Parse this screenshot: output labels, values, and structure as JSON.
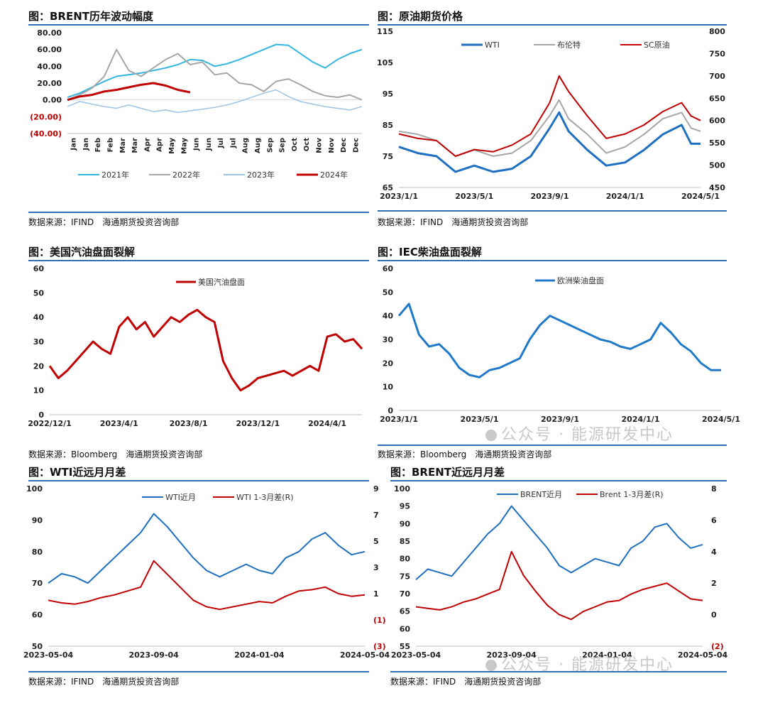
{
  "watermark": "公众号 · 能源研发中心",
  "panels": [
    {
      "title": "图：BRENT历年波动幅度",
      "source": "数据来源：IFIND　海通期货投资咨询部",
      "chart_data": {
        "type": "line",
        "ylim": [
          -40,
          80
        ],
        "yticks": [
          "80.00",
          "60.00",
          "40.00",
          "20.00",
          "0.00",
          "(20.00)",
          "(40.00)"
        ],
        "ytick_values": [
          80,
          60,
          40,
          20,
          0,
          -20,
          -40
        ],
        "xticks": [
          "Jan",
          "Jan",
          "Feb",
          "Feb",
          "Mar",
          "Mar",
          "Apr",
          "Apr",
          "May",
          "May",
          "Jun",
          "Jun",
          "Jul",
          "Jul",
          "Aug",
          "Aug",
          "Sep",
          "Sep",
          "Oct",
          "Oct",
          "Nov",
          "Nov",
          "Dec",
          "Dec"
        ],
        "series": [
          {
            "name": "2021年",
            "color": "#33b5e0",
            "width": 2,
            "x": [
              0,
              0.5,
              1,
              1.5,
              2,
              2.5,
              3,
              3.5,
              4,
              4.5,
              5,
              5.5,
              6,
              6.5,
              7,
              7.5,
              8,
              8.5,
              9,
              9.5,
              10,
              10.5,
              11,
              11.5,
              12
            ],
            "values": [
              3,
              8,
              15,
              22,
              28,
              30,
              32,
              35,
              38,
              42,
              48,
              47,
              40,
              43,
              48,
              54,
              60,
              66,
              65,
              55,
              45,
              38,
              48,
              55,
              60
            ]
          },
          {
            "name": "2022年",
            "color": "#a6a6a6",
            "width": 2,
            "x": [
              0,
              0.5,
              1,
              1.5,
              2,
              2.5,
              3,
              3.5,
              4,
              4.5,
              5,
              5.5,
              6,
              6.5,
              7,
              7.5,
              8,
              8.5,
              9,
              9.5,
              10,
              10.5,
              11,
              11.5,
              12
            ],
            "values": [
              0,
              6,
              14,
              28,
              60,
              35,
              28,
              38,
              48,
              55,
              42,
              45,
              30,
              32,
              20,
              18,
              10,
              22,
              25,
              18,
              10,
              5,
              3,
              6,
              0
            ]
          },
          {
            "name": "2023年",
            "color": "#9dc3e6",
            "width": 1.5,
            "x": [
              0,
              0.5,
              1,
              1.5,
              2,
              2.5,
              3,
              3.5,
              4,
              4.5,
              5,
              5.5,
              6,
              6.5,
              7,
              7.5,
              8,
              8.5,
              9,
              9.5,
              10,
              10.5,
              11,
              11.5,
              12
            ],
            "values": [
              -8,
              -2,
              -5,
              -8,
              -10,
              -6,
              -10,
              -14,
              -12,
              -15,
              -13,
              -11,
              -9,
              -6,
              -2,
              3,
              8,
              12,
              4,
              -2,
              -5,
              -8,
              -10,
              -12,
              -8
            ]
          },
          {
            "name": "2024年",
            "color": "#c00000",
            "width": 3,
            "x": [
              0,
              0.5,
              1,
              1.5,
              2,
              2.5,
              3,
              3.5,
              4,
              4.5,
              5
            ],
            "values": [
              0,
              4,
              6,
              10,
              12,
              15,
              18,
              20,
              17,
              12,
              9
            ]
          }
        ]
      }
    },
    {
      "title": "图：原油期货价格",
      "source": "数据来源：IFIND　海通期货投资咨询部",
      "chart_data": {
        "type": "line",
        "ylim": [
          65,
          115
        ],
        "y2lim": [
          450,
          800
        ],
        "yticks": [
          "115",
          "105",
          "95",
          "85",
          "75",
          "65"
        ],
        "ytick_values": [
          115,
          105,
          95,
          85,
          75,
          65
        ],
        "y2ticks": [
          "800",
          "750",
          "700",
          "650",
          "600",
          "550",
          "500",
          "450"
        ],
        "y2tick_values": [
          800,
          750,
          700,
          650,
          600,
          550,
          500,
          450
        ],
        "xticks": [
          "2023/1/1",
          "2023/5/1",
          "2023/9/1",
          "2024/1/1",
          "2024/5/1"
        ],
        "xtick_pos": [
          0,
          4,
          8,
          12,
          16
        ],
        "series": [
          {
            "name": "WTI",
            "color": "#1f6fc0",
            "width": 3,
            "axis": "left",
            "x": [
              0,
              1,
              2,
              3,
              4,
              5,
              6,
              7,
              8,
              8.5,
              9,
              10,
              11,
              12,
              13,
              14,
              15,
              15.5,
              16
            ],
            "values": [
              78,
              76,
              75,
              70,
              72,
              70,
              71,
              75,
              84,
              89,
              83,
              77,
              72,
              73,
              77,
              82,
              85,
              79,
              79
            ]
          },
          {
            "name": "布伦特",
            "color": "#a6a6a6",
            "width": 2,
            "axis": "left",
            "x": [
              0,
              1,
              2,
              3,
              4,
              5,
              6,
              7,
              8,
              8.5,
              9,
              10,
              11,
              12,
              13,
              14,
              15,
              15.5,
              16
            ],
            "values": [
              83,
              82,
              80,
              75,
              77,
              75,
              76,
              80,
              88,
              93,
              87,
              82,
              76,
              78,
              82,
              87,
              89,
              84,
              83
            ]
          },
          {
            "name": "SC原油",
            "color": "#c00000",
            "width": 2,
            "axis": "right",
            "x": [
              0,
              1,
              2,
              3,
              4,
              5,
              6,
              7,
              8,
              8.5,
              9,
              10,
              11,
              12,
              13,
              14,
              15,
              15.5,
              16
            ],
            "values": [
              570,
              560,
              555,
              520,
              535,
              530,
              545,
              570,
              640,
              700,
              665,
              610,
              560,
              570,
              590,
              620,
              640,
              610,
              600
            ]
          }
        ]
      }
    },
    {
      "title": "图：美国汽油盘面裂解",
      "source": "数据来源：Bloomberg　海通期货投资咨询部",
      "chart_data": {
        "type": "line",
        "ylim": [
          0,
          60
        ],
        "yticks": [
          "60",
          "50",
          "40",
          "30",
          "20",
          "10",
          "0"
        ],
        "ytick_values": [
          60,
          50,
          40,
          30,
          20,
          10,
          0
        ],
        "xticks": [
          "2022/12/1",
          "2023/4/1",
          "2023/8/1",
          "2023/12/1",
          "2024/4/1"
        ],
        "xtick_pos": [
          0,
          4,
          8,
          12,
          16
        ],
        "series": [
          {
            "name": "美国汽油盘面",
            "color": "#c00000",
            "width": 3,
            "x": [
              0,
              0.5,
              1,
              1.5,
              2,
              2.5,
              3,
              3.5,
              4,
              4.5,
              5,
              5.5,
              6,
              6.5,
              7,
              7.5,
              8,
              8.5,
              9,
              9.5,
              10,
              10.5,
              11,
              11.5,
              12,
              12.5,
              13,
              13.5,
              14,
              14.5,
              15,
              15.5,
              16,
              16.5,
              17,
              17.5,
              18
            ],
            "values": [
              20,
              15,
              18,
              22,
              26,
              30,
              27,
              25,
              36,
              40,
              35,
              38,
              32,
              36,
              40,
              38,
              41,
              43,
              40,
              38,
              22,
              15,
              10,
              12,
              15,
              16,
              17,
              18,
              16,
              18,
              20,
              18,
              32,
              33,
              30,
              31,
              27
            ]
          }
        ]
      }
    },
    {
      "title": "图：IEC柴油盘面裂解",
      "source": "数据来源：Bloomberg　海通期货投资咨询部",
      "chart_data": {
        "type": "line",
        "ylim": [
          0,
          60
        ],
        "yticks": [
          "60",
          "50",
          "40",
          "30",
          "20",
          "10",
          "0"
        ],
        "ytick_values": [
          60,
          50,
          40,
          30,
          20,
          10,
          0
        ],
        "xticks": [
          "2023/1/1",
          "2023/5/1",
          "2023/9/1",
          "2024/1/1",
          "2024/5/1"
        ],
        "xtick_pos": [
          0,
          4,
          8,
          12,
          16
        ],
        "series": [
          {
            "name": "欧洲柴油盘面",
            "color": "#1f78c8",
            "width": 3,
            "x": [
              0,
              0.5,
              1,
              1.5,
              2,
              2.5,
              3,
              3.5,
              4,
              4.5,
              5,
              5.5,
              6,
              6.5,
              7,
              7.5,
              8,
              8.5,
              9,
              9.5,
              10,
              10.5,
              11,
              11.5,
              12,
              12.5,
              13,
              13.5,
              14,
              14.5,
              15,
              15.5,
              16
            ],
            "values": [
              40,
              45,
              32,
              27,
              28,
              24,
              18,
              15,
              14,
              17,
              18,
              20,
              22,
              30,
              36,
              40,
              38,
              36,
              34,
              32,
              30,
              29,
              27,
              26,
              28,
              30,
              37,
              33,
              28,
              25,
              20,
              17,
              17
            ]
          }
        ]
      }
    },
    {
      "title": "图：WTI近远月月差",
      "source": "数据来源：IFIND　海通期货投资咨询部",
      "chart_data": {
        "type": "line",
        "ylim": [
          50,
          100
        ],
        "y2lim": [
          -3,
          9
        ],
        "yticks": [
          "100",
          "90",
          "80",
          "70",
          "60",
          "50"
        ],
        "ytick_values": [
          100,
          90,
          80,
          70,
          60,
          50
        ],
        "y2ticks": [
          "9",
          "7",
          "5",
          "3",
          "1",
          "(1)",
          "(3)"
        ],
        "y2tick_values": [
          9,
          7,
          5,
          3,
          1,
          -1,
          -3
        ],
        "xticks": [
          "2023-05-04",
          "2023-09-04",
          "2024-01-04",
          "2024-05-04"
        ],
        "xtick_pos": [
          0,
          4,
          8,
          12
        ],
        "series": [
          {
            "name": "WTI近月",
            "color": "#1f6fc0",
            "width": 2,
            "axis": "left",
            "x": [
              0,
              0.5,
              1,
              1.5,
              2,
              2.5,
              3,
              3.5,
              4,
              4.5,
              5,
              5.5,
              6,
              6.5,
              7,
              7.5,
              8,
              8.5,
              9,
              9.5,
              10,
              10.5,
              11,
              11.5,
              12
            ],
            "values": [
              70,
              73,
              72,
              70,
              74,
              78,
              82,
              86,
              92,
              88,
              83,
              78,
              74,
              72,
              74,
              76,
              74,
              73,
              78,
              80,
              84,
              86,
              82,
              79,
              80
            ]
          },
          {
            "name": "WTI 1-3月差(R)",
            "color": "#c00000",
            "width": 2,
            "axis": "right",
            "x": [
              0,
              0.5,
              1,
              1.5,
              2,
              2.5,
              3,
              3.5,
              4,
              4.5,
              5,
              5.5,
              6,
              6.5,
              7,
              7.5,
              8,
              8.5,
              9,
              9.5,
              10,
              10.5,
              11,
              11.5,
              12
            ],
            "values": [
              0.5,
              0.3,
              0.2,
              0.4,
              0.7,
              0.9,
              1.2,
              1.5,
              3.5,
              2.5,
              1.5,
              0.5,
              0,
              -0.2,
              0,
              0.2,
              0.4,
              0.3,
              0.8,
              1.2,
              1.3,
              1.5,
              1.0,
              0.8,
              0.9
            ]
          }
        ]
      }
    },
    {
      "title": "图：BRENT近远月月差",
      "source": "数据来源：IFIND　海通期货投资咨询部",
      "chart_data": {
        "type": "line",
        "ylim": [
          55,
          100
        ],
        "y2lim": [
          -2,
          8
        ],
        "yticks": [
          "100",
          "95",
          "90",
          "85",
          "80",
          "75",
          "70",
          "65",
          "60",
          "55"
        ],
        "ytick_values": [
          100,
          95,
          90,
          85,
          80,
          75,
          70,
          65,
          60,
          55
        ],
        "y2ticks": [
          "8",
          "6",
          "4",
          "2",
          "0",
          "(2)"
        ],
        "y2tick_values": [
          8,
          6,
          4,
          2,
          0,
          -2
        ],
        "xticks": [
          "2023-05-04",
          "2023-09-04",
          "2024-01-04",
          "2024-05-04"
        ],
        "xtick_pos": [
          0,
          4,
          8,
          12
        ],
        "series": [
          {
            "name": "BRENT近月",
            "color": "#1f6fc0",
            "width": 2,
            "axis": "left",
            "x": [
              0,
              0.5,
              1,
              1.5,
              2,
              2.5,
              3,
              3.5,
              4,
              4.5,
              5,
              5.5,
              6,
              6.5,
              7,
              7.5,
              8,
              8.5,
              9,
              9.5,
              10,
              10.5,
              11,
              11.5,
              12
            ],
            "values": [
              74,
              77,
              76,
              75,
              79,
              83,
              87,
              90,
              95,
              91,
              87,
              83,
              78,
              76,
              78,
              80,
              79,
              78,
              83,
              85,
              89,
              90,
              86,
              83,
              84
            ]
          },
          {
            "name": "Brent 1-3月差(R)",
            "color": "#c00000",
            "width": 2,
            "axis": "right",
            "x": [
              0,
              0.5,
              1,
              1.5,
              2,
              2.5,
              3,
              3.5,
              4,
              4.5,
              5,
              5.5,
              6,
              6.5,
              7,
              7.5,
              8,
              8.5,
              9,
              9.5,
              10,
              10.5,
              11,
              11.5,
              12
            ],
            "values": [
              0.5,
              0.4,
              0.3,
              0.5,
              0.8,
              1.0,
              1.3,
              1.6,
              4.0,
              2.5,
              1.5,
              0.6,
              0,
              -0.3,
              0.2,
              0.5,
              0.8,
              0.9,
              1.3,
              1.6,
              1.8,
              2.0,
              1.5,
              1.0,
              0.9
            ]
          }
        ]
      }
    }
  ]
}
